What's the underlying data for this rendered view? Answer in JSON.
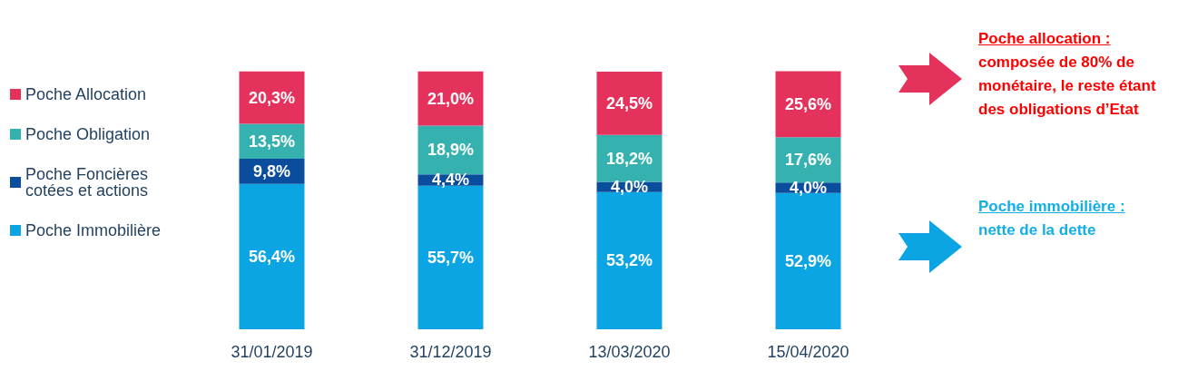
{
  "chart_data": {
    "type": "bar",
    "stacked": true,
    "legend": "left",
    "categories": [
      "31/01/2019",
      "31/12/2019",
      "13/03/2020",
      "15/04/2020"
    ],
    "series": [
      {
        "name": "Poche Immobilière",
        "color": "#0aa5e2",
        "values": [
          56.4,
          55.7,
          53.2,
          52.9
        ],
        "value_labels": [
          "56,4%",
          "55,7%",
          "53,2%",
          "52,9%"
        ]
      },
      {
        "name": "Poche Foncières cotées et actions",
        "color": "#0a4d9c",
        "values": [
          9.8,
          4.4,
          4.0,
          4.0
        ],
        "value_labels": [
          "9,8%",
          "4,4%",
          "4,0%",
          "4,0%"
        ]
      },
      {
        "name": "Poche Obligation",
        "color": "#35b2b0",
        "values": [
          13.5,
          18.9,
          18.2,
          17.6
        ],
        "value_labels": [
          "13,5%",
          "18,9%",
          "18,2%",
          "17,6%"
        ]
      },
      {
        "name": "Poche Allocation",
        "color": "#e5325c",
        "values": [
          20.3,
          21.0,
          24.5,
          25.6
        ],
        "value_labels": [
          "20,3%",
          "21,0%",
          "24,5%",
          "25,6%"
        ]
      }
    ],
    "annotations": [
      "Poche allocation :",
      "composée de 80% de monétaire, le reste étant des obligations d’Etat",
      "Poche immobilière :",
      "nette de la dette"
    ]
  }
}
